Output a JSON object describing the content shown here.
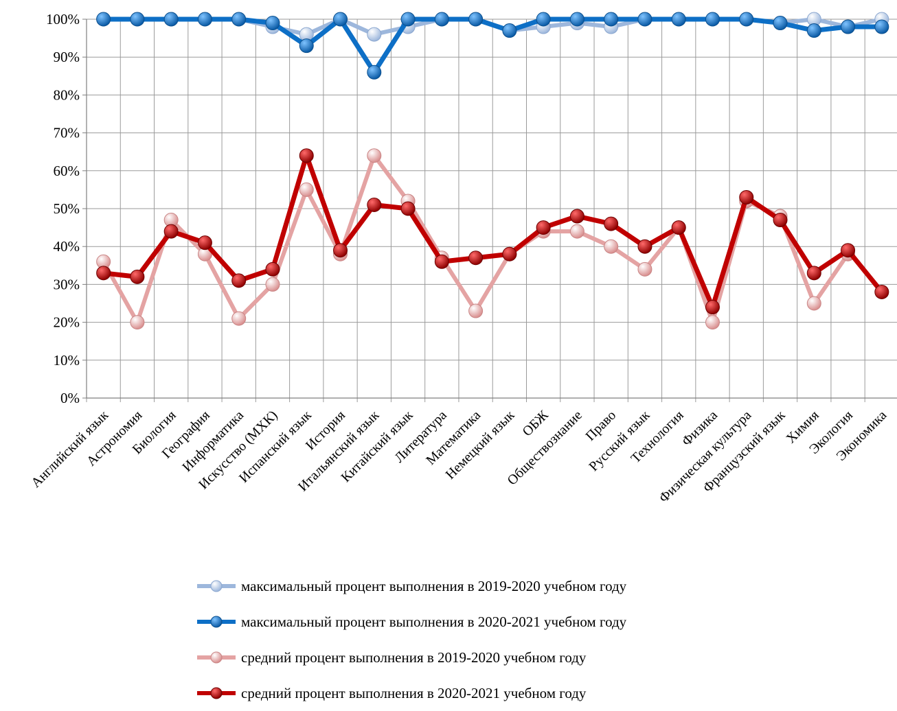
{
  "chart_data": {
    "type": "line",
    "categories": [
      "Английский язык",
      "Астрономия",
      "Биология",
      "География",
      "Информатика",
      "Искусство (МХК)",
      "Испанский язык",
      "История",
      "Итальянский язык",
      "Китайский язык",
      "Литература",
      "Математика",
      "Немецкий язык",
      "ОБЖ",
      "Обществознание",
      "Право",
      "Русский язык",
      "Технология",
      "Физика",
      "Физическая культура",
      "Французский язык",
      "Химия",
      "Экология",
      "Экономика"
    ],
    "y_ticks": [
      "0%",
      "10%",
      "20%",
      "30%",
      "40%",
      "50%",
      "60%",
      "70%",
      "80%",
      "90%",
      "100%"
    ],
    "ylim": [
      0,
      100
    ],
    "grid": true,
    "legend_position": "bottom",
    "series": [
      {
        "name": "максимальный процент выполнения в 2019-2020 учебном году",
        "color": "#9db7dc",
        "marker": "#b9cde8",
        "values": [
          100,
          100,
          100,
          100,
          100,
          98,
          96,
          100,
          96,
          98,
          100,
          100,
          97,
          98,
          99,
          98,
          100,
          100,
          100,
          100,
          99,
          100,
          98,
          100
        ]
      },
      {
        "name": "максимальный процент выполнения в 2020-2021 учебном году",
        "color": "#0d6fc6",
        "marker": "#0d6fc6",
        "values": [
          100,
          100,
          100,
          100,
          100,
          99,
          93,
          100,
          86,
          100,
          100,
          100,
          97,
          100,
          100,
          100,
          100,
          100,
          100,
          100,
          99,
          97,
          98,
          98
        ]
      },
      {
        "name": "средний процент выполнения в 2019-2020 учебном году",
        "color": "#e4a3a3",
        "marker": "#e9b4b4",
        "values": [
          36,
          20,
          47,
          38,
          21,
          30,
          55,
          38,
          64,
          52,
          37,
          23,
          38,
          44,
          44,
          40,
          34,
          45,
          20,
          52,
          48,
          25,
          38,
          null
        ]
      },
      {
        "name": "средний процент выполнения в 2020-2021 учебном году",
        "color": "#c00000",
        "marker": "#c00000",
        "values": [
          33,
          32,
          44,
          41,
          31,
          34,
          64,
          39,
          51,
          50,
          36,
          37,
          38,
          45,
          48,
          46,
          40,
          45,
          24,
          53,
          47,
          33,
          39,
          28
        ]
      }
    ]
  }
}
